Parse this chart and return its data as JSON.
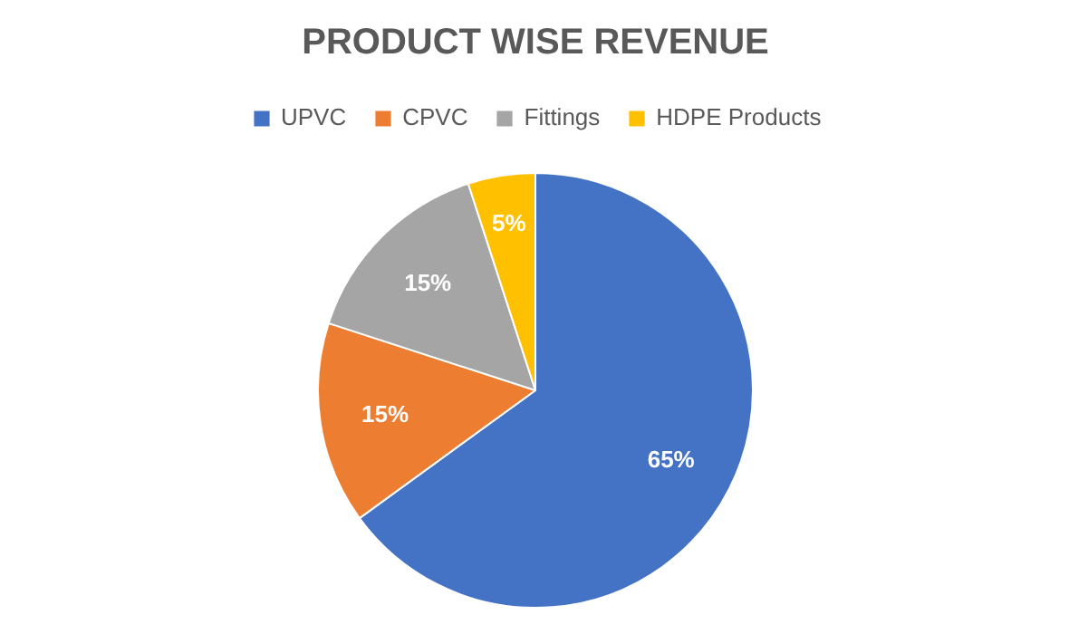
{
  "chart_data": {
    "type": "pie",
    "title": "PRODUCT WISE REVENUE",
    "categories": [
      "UPVC",
      "CPVC",
      "Fittings",
      "HDPE Products"
    ],
    "values": [
      65,
      15,
      15,
      5
    ],
    "colors": [
      "#4472c4",
      "#ed7d31",
      "#a5a5a5",
      "#ffc000"
    ],
    "value_labels": [
      "65%",
      "15%",
      "15%",
      "5%"
    ],
    "legend": "top"
  }
}
